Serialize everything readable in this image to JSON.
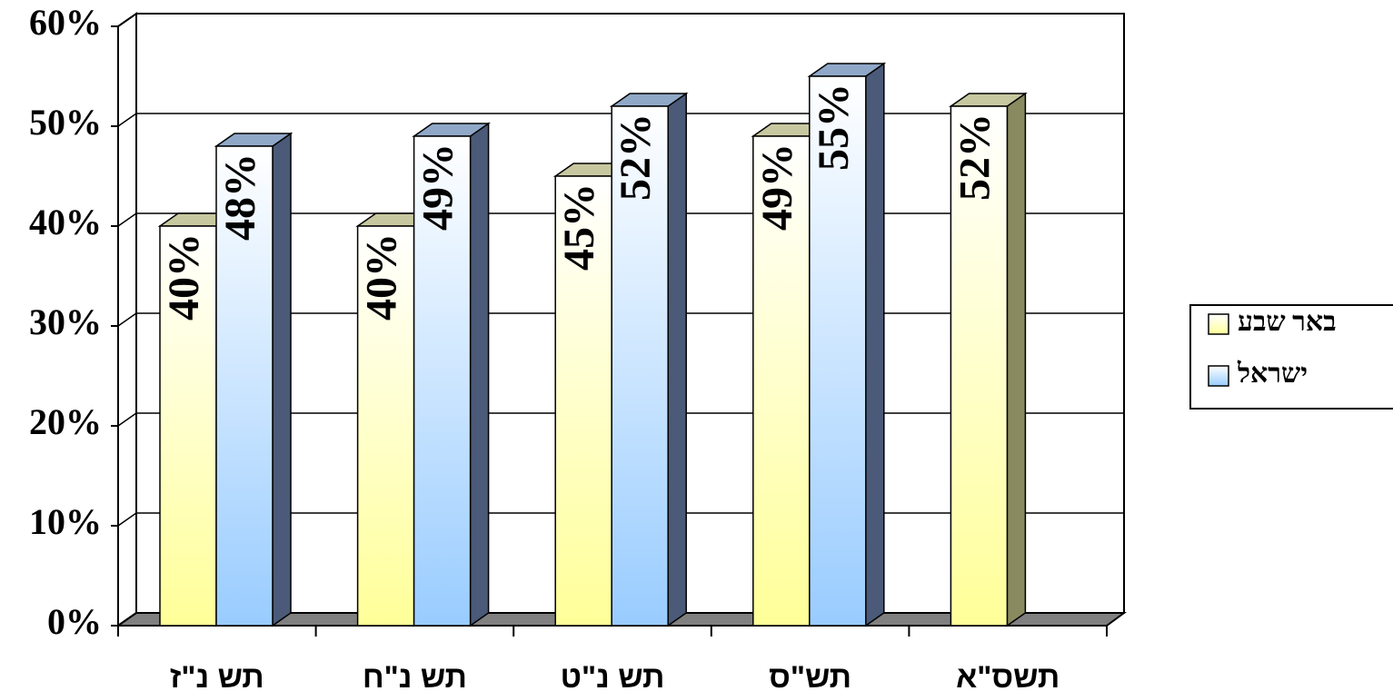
{
  "chart_data": {
    "type": "bar3d",
    "categories": [
      "תש נ\"ז",
      "תש נ\"ח",
      "תש נ\"ט",
      "תש\"ס",
      "תשס\"א"
    ],
    "series": [
      {
        "name": "באר שבע",
        "color": "#ffff99",
        "values": [
          40,
          40,
          45,
          49,
          52
        ],
        "value_labels": [
          "40%",
          "40%",
          "45%",
          "49%",
          "52%"
        ]
      },
      {
        "name": "ישראל",
        "color": "#99ccff",
        "values": [
          48,
          49,
          52,
          55,
          null
        ],
        "value_labels": [
          "48%",
          "49%",
          "52%",
          "55%",
          null
        ]
      }
    ],
    "ylim": [
      0,
      60
    ],
    "yticks": [
      {
        "value": 0,
        "label": "0%"
      },
      {
        "value": 10,
        "label": "10%"
      },
      {
        "value": 20,
        "label": "20%"
      },
      {
        "value": 30,
        "label": "30%"
      },
      {
        "value": 40,
        "label": "40%"
      },
      {
        "value": 50,
        "label": "50%"
      },
      {
        "value": 60,
        "label": "60%"
      }
    ],
    "grid": true,
    "legend": "right"
  }
}
